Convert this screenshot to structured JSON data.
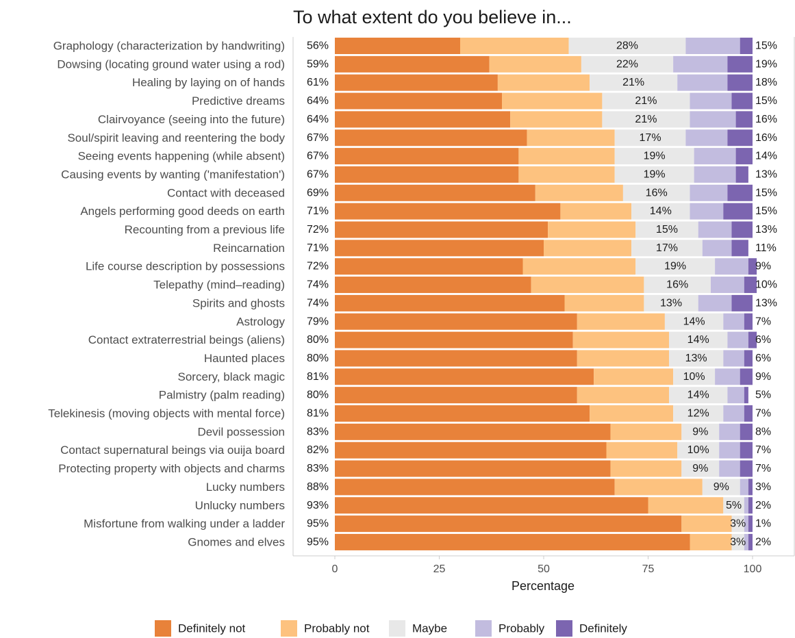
{
  "chart_data": {
    "type": "bar",
    "orientation": "horizontal",
    "stacked": true,
    "title": "To what extent do you believe in...",
    "xlabel": "Percentage",
    "ylabel": "",
    "xlim": [
      0,
      100
    ],
    "x_ticks": [
      "0",
      "25",
      "50",
      "75",
      "100"
    ],
    "grid": false,
    "legend_position": "bottom",
    "series": [
      {
        "name": "Definitely not",
        "color": "#e8823a"
      },
      {
        "name": "Probably not",
        "color": "#fdc27f"
      },
      {
        "name": "Maybe",
        "color": "#e8e8e8"
      },
      {
        "name": "Probably",
        "color": "#c2bcdf"
      },
      {
        "name": "Definitely",
        "color": "#7c65b0"
      }
    ],
    "rows": [
      {
        "category": "Graphology (characterization by handwriting)",
        "values": [
          30,
          26,
          28,
          13,
          3
        ],
        "left_label": "56%",
        "mid_label": "28%",
        "right_label": "15%"
      },
      {
        "category": "Dowsing (locating ground water using a rod)",
        "values": [
          37,
          22,
          22,
          13,
          6
        ],
        "left_label": "59%",
        "mid_label": "22%",
        "right_label": "19%"
      },
      {
        "category": "Healing by laying on of hands",
        "values": [
          39,
          22,
          21,
          12,
          6
        ],
        "left_label": "61%",
        "mid_label": "21%",
        "right_label": "18%"
      },
      {
        "category": "Predictive dreams",
        "values": [
          40,
          24,
          21,
          10,
          5
        ],
        "left_label": "64%",
        "mid_label": "21%",
        "right_label": "15%"
      },
      {
        "category": "Clairvoyance (seeing into the future)",
        "values": [
          42,
          22,
          21,
          11,
          4
        ],
        "left_label": "64%",
        "mid_label": "21%",
        "right_label": "16%"
      },
      {
        "category": "Soul/spirit leaving and reentering the body",
        "values": [
          46,
          21,
          17,
          10,
          6
        ],
        "left_label": "67%",
        "mid_label": "17%",
        "right_label": "16%"
      },
      {
        "category": "Seeing events happening (while absent)",
        "values": [
          44,
          23,
          19,
          10,
          4
        ],
        "left_label": "67%",
        "mid_label": "19%",
        "right_label": "14%"
      },
      {
        "category": "Causing events by wanting ('manifestation')",
        "values": [
          44,
          23,
          19,
          10,
          3
        ],
        "left_label": "67%",
        "mid_label": "19%",
        "right_label": "13%"
      },
      {
        "category": "Contact with deceased",
        "values": [
          48,
          21,
          16,
          9,
          6
        ],
        "left_label": "69%",
        "mid_label": "16%",
        "right_label": "15%"
      },
      {
        "category": "Angels performing good deeds on earth",
        "values": [
          54,
          17,
          14,
          8,
          7
        ],
        "left_label": "71%",
        "mid_label": "14%",
        "right_label": "15%"
      },
      {
        "category": "Recounting from a previous life",
        "values": [
          51,
          21,
          15,
          8,
          5
        ],
        "left_label": "72%",
        "mid_label": "15%",
        "right_label": "13%"
      },
      {
        "category": "Reincarnation",
        "values": [
          50,
          21,
          17,
          7,
          4
        ],
        "left_label": "71%",
        "mid_label": "17%",
        "right_label": "11%"
      },
      {
        "category": "Life course description by possessions",
        "values": [
          45,
          27,
          19,
          8,
          2
        ],
        "left_label": "72%",
        "mid_label": "19%",
        "right_label": "9%"
      },
      {
        "category": "Telepathy (mind–reading)",
        "values": [
          47,
          27,
          16,
          8,
          3
        ],
        "left_label": "74%",
        "mid_label": "16%",
        "right_label": "10%"
      },
      {
        "category": "Spirits and ghosts",
        "values": [
          55,
          19,
          13,
          8,
          5
        ],
        "left_label": "74%",
        "mid_label": "13%",
        "right_label": "13%"
      },
      {
        "category": "Astrology",
        "values": [
          58,
          21,
          14,
          5,
          2
        ],
        "left_label": "79%",
        "mid_label": "14%",
        "right_label": "7%"
      },
      {
        "category": "Contact extraterrestrial beings (aliens)",
        "values": [
          57,
          23,
          14,
          5,
          2
        ],
        "left_label": "80%",
        "mid_label": "14%",
        "right_label": "6%"
      },
      {
        "category": "Haunted places",
        "values": [
          58,
          22,
          13,
          5,
          2
        ],
        "left_label": "80%",
        "mid_label": "13%",
        "right_label": "6%"
      },
      {
        "category": "Sorcery, black magic",
        "values": [
          62,
          19,
          10,
          6,
          3
        ],
        "left_label": "81%",
        "mid_label": "10%",
        "right_label": "9%"
      },
      {
        "category": "Palmistry (palm reading)",
        "values": [
          58,
          22,
          14,
          4,
          1
        ],
        "left_label": "80%",
        "mid_label": "14%",
        "right_label": "5%"
      },
      {
        "category": "Telekinesis (moving objects with mental force)",
        "values": [
          61,
          20,
          12,
          5,
          2
        ],
        "left_label": "81%",
        "mid_label": "12%",
        "right_label": "7%"
      },
      {
        "category": "Devil possession",
        "values": [
          66,
          17,
          9,
          5,
          3
        ],
        "left_label": "83%",
        "mid_label": "9%",
        "right_label": "8%"
      },
      {
        "category": "Contact supernatural beings via ouija board",
        "values": [
          65,
          17,
          10,
          5,
          3
        ],
        "left_label": "82%",
        "mid_label": "10%",
        "right_label": "7%"
      },
      {
        "category": "Protecting property with objects and charms",
        "values": [
          66,
          17,
          9,
          5,
          3
        ],
        "left_label": "83%",
        "mid_label": "9%",
        "right_label": "7%"
      },
      {
        "category": "Lucky numbers",
        "values": [
          67,
          21,
          9,
          2,
          1
        ],
        "left_label": "88%",
        "mid_label": "9%",
        "right_label": "3%"
      },
      {
        "category": "Unlucky numbers",
        "values": [
          75,
          18,
          5,
          1,
          1
        ],
        "left_label": "93%",
        "mid_label": "5%",
        "right_label": "2%"
      },
      {
        "category": "Misfortune from walking under a ladder",
        "values": [
          83,
          12,
          3,
          1,
          1
        ],
        "left_label": "95%",
        "mid_label": "3%",
        "right_label": "1%"
      },
      {
        "category": "Gnomes and elves",
        "values": [
          85,
          10,
          3,
          1,
          1
        ],
        "left_label": "95%",
        "mid_label": "3%",
        "right_label": "2%"
      }
    ]
  }
}
